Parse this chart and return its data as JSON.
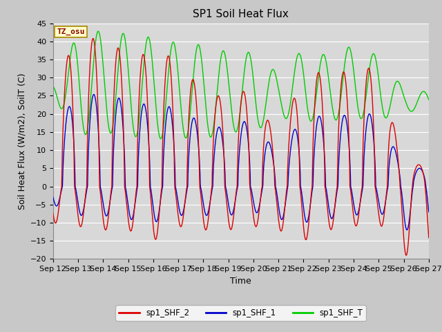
{
  "title": "SP1 Soil Heat Flux",
  "xlabel": "Time",
  "ylabel": "Soil Heat Flux (W/m2), SoilT (C)",
  "ylim": [
    -20,
    45
  ],
  "yticks": [
    -20,
    -15,
    -10,
    -5,
    0,
    5,
    10,
    15,
    20,
    25,
    30,
    35,
    40,
    45
  ],
  "xtick_labels": [
    "Sep 12",
    "Sep 13",
    "Sep 14",
    "Sep 15",
    "Sep 16",
    "Sep 17",
    "Sep 18",
    "Sep 19",
    "Sep 20",
    "Sep 21",
    "Sep 22",
    "Sep 23",
    "Sep 24",
    "Sep 25",
    "Sep 26",
    "Sep 27"
  ],
  "colors": {
    "SHF2": "#dd0000",
    "SHF1": "#0000cc",
    "SHFT": "#00cc00"
  },
  "legend_labels": [
    "sp1_SHF_2",
    "sp1_SHF_1",
    "sp1_SHF_T"
  ],
  "tz_label": "TZ_osu",
  "plot_bg": "#d8d8d8",
  "grid_color": "#ffffff",
  "title_fontsize": 11,
  "axis_label_fontsize": 9,
  "tick_fontsize": 8
}
